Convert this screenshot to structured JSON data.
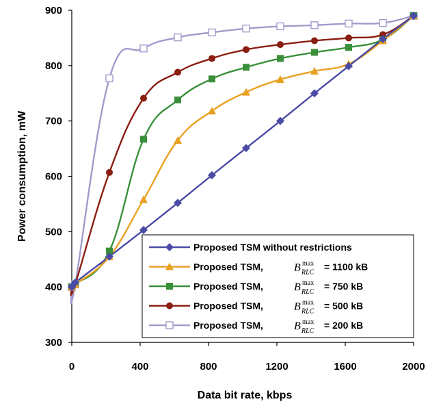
{
  "chart_data": {
    "type": "line",
    "xlabel": "Data bit rate, kbps",
    "ylabel": "Power consumption, mW",
    "xlim": [
      0,
      2000
    ],
    "ylim": [
      300,
      900
    ],
    "xticks": [
      0,
      400,
      800,
      1200,
      1600,
      2000
    ],
    "yticks": [
      300,
      400,
      500,
      600,
      700,
      800,
      900
    ],
    "xtick_labels": [
      "0",
      "400",
      "800",
      "1200",
      "1600",
      "2000"
    ],
    "ytick_labels": [
      "300",
      "400",
      "500",
      "600",
      "700",
      "800",
      "900"
    ],
    "grid": false,
    "legend_position": "bottom-right",
    "x_markers": [
      0,
      20,
      220,
      420,
      620,
      820,
      1020,
      1220,
      1420,
      1620,
      1820,
      2000
    ],
    "series": [
      {
        "name": "Proposed TSM without restrictions",
        "legend_prefix": "Proposed TSM without restrictions",
        "legend_math": "",
        "legend_suffix": "",
        "color": "#4a4aa6",
        "marker": "diamond",
        "values": [
          400,
          408,
          455,
          503,
          552,
          602,
          651,
          700,
          750,
          799,
          848,
          890
        ]
      },
      {
        "name": "Proposed TSM, B_RLC^max = 1100 kB",
        "legend_prefix": "Proposed TSM,",
        "legend_math": "B",
        "legend_sub": "RLC",
        "legend_sup": "max",
        "legend_suffix": "= 1100 kB",
        "color": "#e8a020",
        "marker": "triangle",
        "values": [
          400,
          405,
          455,
          558,
          665,
          718,
          752,
          775,
          790,
          803,
          845,
          890
        ]
      },
      {
        "name": "Proposed TSM, B_RLC^max = 750 kB",
        "legend_prefix": "Proposed TSM,",
        "legend_math": "B",
        "legend_sub": "RLC",
        "legend_sup": "max",
        "legend_suffix": "= 750 kB",
        "color": "#3a8f3a",
        "marker": "square",
        "values": [
          400,
          405,
          465,
          667,
          738,
          776,
          797,
          813,
          824,
          833,
          847,
          890
        ]
      },
      {
        "name": "Proposed TSM, B_RLC^max = 500 kB",
        "legend_prefix": "Proposed TSM,",
        "legend_math": "B",
        "legend_sub": "RLC",
        "legend_sup": "max",
        "legend_suffix": "= 500 kB",
        "color": "#8a1e12",
        "marker": "circle",
        "values": [
          400,
          405,
          607,
          741,
          788,
          813,
          829,
          838,
          845,
          850,
          856,
          890
        ]
      },
      {
        "name": "Proposed TSM, B_RLC^max = 200 kB",
        "legend_prefix": "Proposed TSM,",
        "legend_math": "B",
        "legend_sub": "RLC",
        "legend_sup": "max",
        "legend_suffix": "= 200 kB",
        "color": "#a39acb",
        "marker": "open-square",
        "values": [
          400,
          405,
          777,
          831,
          851,
          860,
          867,
          871,
          873,
          876,
          877,
          890
        ]
      }
    ]
  }
}
